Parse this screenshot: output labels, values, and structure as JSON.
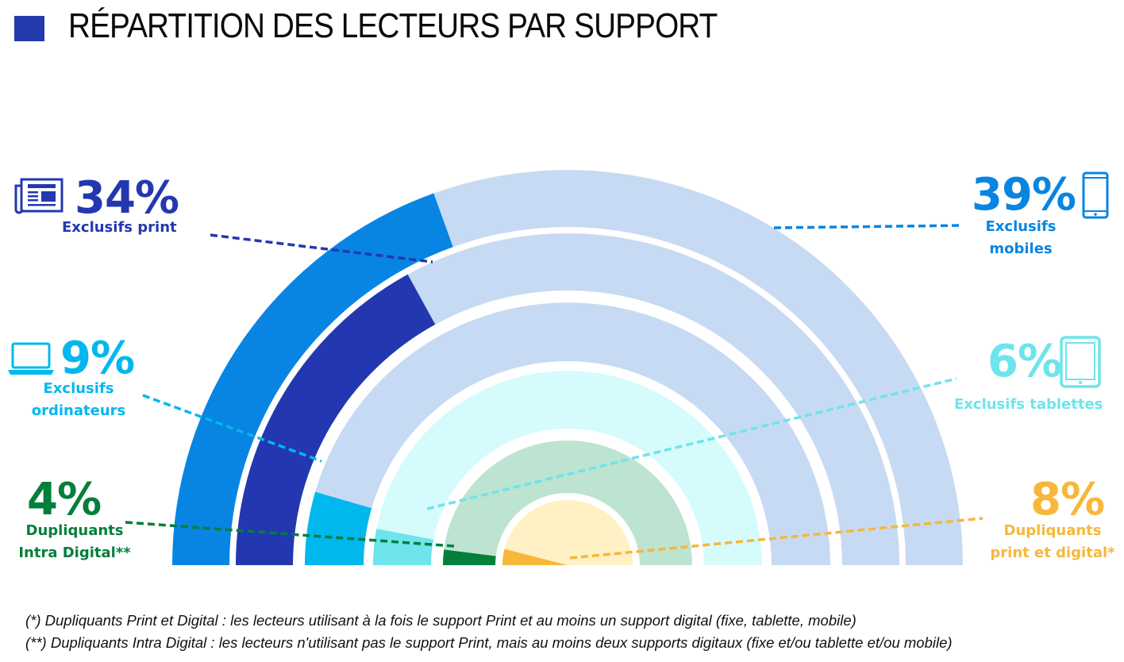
{
  "title": "RÉPARTITION DES LECTEURS PAR SUPPORT",
  "colors": {
    "title_square": "#233aad",
    "mobile": "#0885e2",
    "print": "#2338b0",
    "computer": "#00b8ee",
    "tablet": "#6ee4ec",
    "intra_digital": "#027f3b",
    "print_digital": "#f7b73a",
    "remainder_mobile": "#c7daf3",
    "remainder_print": "#c7daf3",
    "remainder_computer": "#c7daf3",
    "remainder_tablet": "#d6fbfd",
    "remainder_intra": "#bde3d1",
    "remainder_print_digital": "#fff1c4"
  },
  "labels": {
    "print": {
      "pct": "34%",
      "lines": [
        "Exclusifs print"
      ],
      "icon": "newspaper-icon"
    },
    "mobile": {
      "pct": "39%",
      "lines": [
        "Exclusifs",
        "mobiles"
      ],
      "icon": "smartphone-icon"
    },
    "computer": {
      "pct": "9%",
      "lines": [
        "Exclusifs",
        "ordinateurs"
      ],
      "icon": "laptop-icon"
    },
    "tablet": {
      "pct": "6%",
      "lines": [
        "Exclusifs tablettes"
      ],
      "icon": "tablet-icon"
    },
    "intra_digital": {
      "pct": "4%",
      "lines": [
        "Dupliquants",
        "Intra Digital**"
      ]
    },
    "print_digital": {
      "pct": "8%",
      "lines": [
        "Dupliquants",
        "print et digital*"
      ]
    }
  },
  "chart_data": {
    "type": "radial-bar",
    "series": [
      {
        "name": "Exclusifs mobiles",
        "value": 39
      },
      {
        "name": "Exclusifs print",
        "value": 34
      },
      {
        "name": "Exclusifs ordinateurs",
        "value": 9
      },
      {
        "name": "Exclusifs tablettes",
        "value": 6
      },
      {
        "name": "Dupliquants Intra Digital**",
        "value": 4
      },
      {
        "name": "Dupliquants print et digital*",
        "value": 8
      }
    ]
  },
  "footnotes": [
    "(*) Dupliquants Print et Digital : les lecteurs utilisant à la fois le support Print et au moins un support digital (fixe, tablette, mobile)",
    "(**) Dupliquants Intra Digital : les lecteurs n'utilisant pas le support Print, mais au moins deux supports digitaux (fixe et/ou tablette et/ou mobile)"
  ]
}
